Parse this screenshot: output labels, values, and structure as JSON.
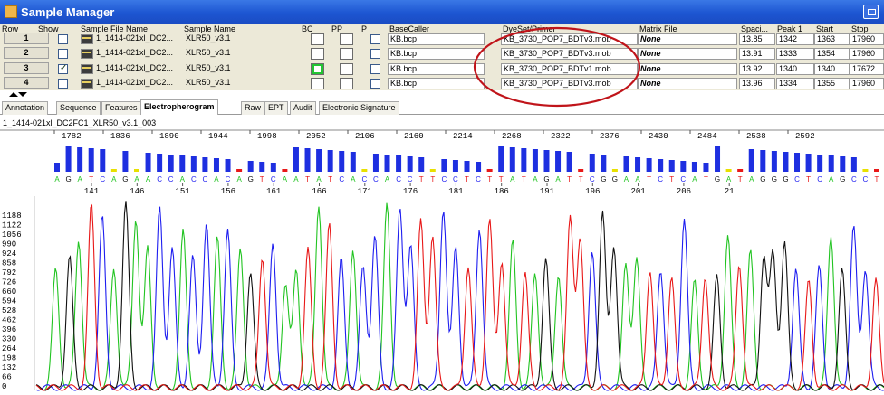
{
  "window": {
    "title": "Sample Manager"
  },
  "table": {
    "headers": {
      "row": "Row",
      "show": "Show",
      "sample_file": "Sample File Name",
      "sample_name": "Sample Name",
      "bc": "BC",
      "pp": "PP",
      "p": "P",
      "basecaller": "BaseCaller",
      "dyeset": "DyeSet/Primer",
      "matrix": "Matrix File",
      "spacing": "Spaci...",
      "peak1": "Peak 1",
      "start": "Start",
      "stop": "Stop"
    },
    "rows": [
      {
        "row": "1",
        "show": false,
        "file": "1_1414-021xl_DC2...",
        "name": "XLR50_v3.1",
        "bc_green": false,
        "basecaller": "KB.bcp",
        "dyeset": "KB_3730_POP7_BDTv3.mob",
        "matrix": "None",
        "spacing": "13.85",
        "peak1": "1342",
        "start": "1363",
        "stop": "17960"
      },
      {
        "row": "2",
        "show": false,
        "file": "1_1414-021xl_DC2...",
        "name": "XLR50_v3.1",
        "bc_green": false,
        "basecaller": "KB.bcp",
        "dyeset": "KB_3730_POP7_BDTv3.mob",
        "matrix": "None",
        "spacing": "13.91",
        "peak1": "1333",
        "start": "1354",
        "stop": "17960"
      },
      {
        "row": "3",
        "show": true,
        "file": "1_1414-021xl_DC2...",
        "name": "XLR50_v3.1",
        "bc_green": true,
        "basecaller": "KB.bcp",
        "dyeset": "KB_3730_POP7_BDTv1.mob",
        "matrix": "None",
        "spacing": "13.92",
        "peak1": "1340",
        "start": "1340",
        "stop": "17672"
      },
      {
        "row": "4",
        "show": false,
        "file": "1_1414-021xl_DC2...",
        "name": "XLR50_v3.1",
        "bc_green": false,
        "basecaller": "KB.bcp",
        "dyeset": "KB_3730_POP7_BDTv3.mob",
        "matrix": "None",
        "spacing": "13.96",
        "peak1": "1334",
        "start": "1355",
        "stop": "17960"
      }
    ]
  },
  "tabs": [
    "Annotation",
    "Sequence",
    "Features",
    "Electropherogram",
    "Raw",
    "EPT",
    "Audit",
    "Electronic Signature"
  ],
  "active_tab": "Electropherogram",
  "sample_title": "1_1414-021xl_DC2FC1_XLR50_v3.1_003",
  "electropherogram": {
    "scan_ticks": [
      "1782",
      "1836",
      "1890",
      "1944",
      "1998",
      "2052",
      "2106",
      "2160",
      "2214",
      "2268",
      "2322",
      "2376",
      "2430",
      "2484",
      "2538",
      "2592"
    ],
    "base_ticks": [
      "141",
      "146",
      "151",
      "156",
      "161",
      "166",
      "171",
      "176",
      "181",
      "186",
      "191",
      "196",
      "201",
      "206",
      "21"
    ],
    "bases": "AGATCAGAACCACCACAGTCAATATCACCACCTTCCTCTTATAGATTCGGAATCTCATGATAGGGCTCAGCCT",
    "y_ticks": [
      "1188",
      "1122",
      "1056",
      "990",
      "924",
      "858",
      "792",
      "726",
      "660",
      "594",
      "528",
      "462",
      "396",
      "330",
      "264",
      "198",
      "132",
      "66",
      "0"
    ],
    "colors": {
      "A": "#22c422",
      "C": "#1e1ef0",
      "G": "#111111",
      "T": "#e81818"
    },
    "highlight_color": "#c0141a"
  }
}
